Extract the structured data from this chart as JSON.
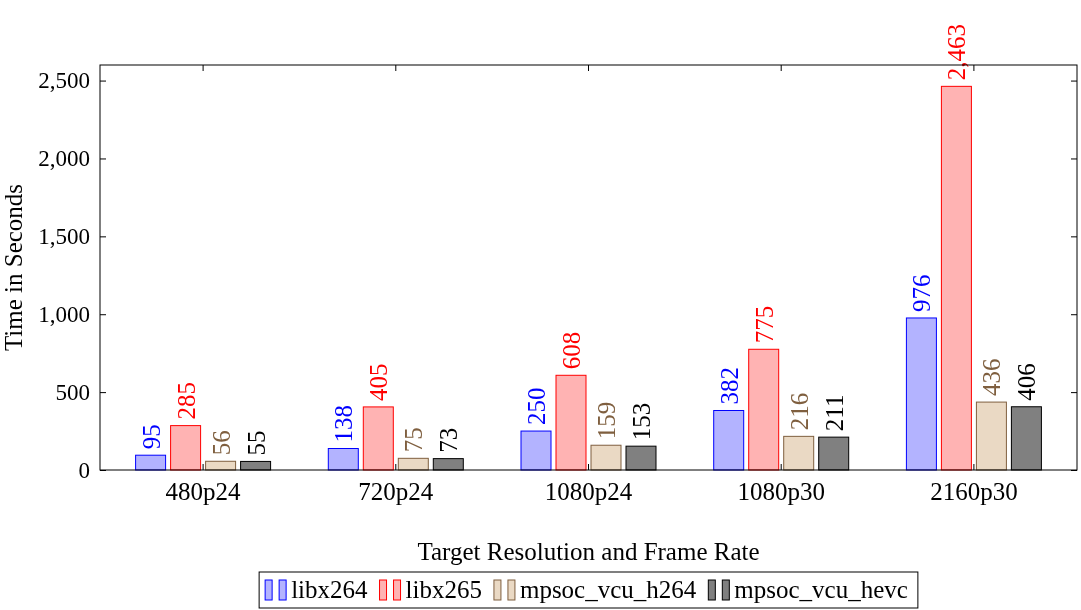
{
  "chart_data": {
    "type": "bar",
    "xlabel": "Target Resolution and Frame Rate",
    "ylabel": "Time in Seconds",
    "categories": [
      "480p24",
      "720p24",
      "1080p24",
      "1080p30",
      "2160p30"
    ],
    "series": [
      {
        "name": "libx264",
        "color": "#b3b3ff",
        "values": [
          95,
          138,
          250,
          382,
          976
        ],
        "value_labels": [
          "95",
          "138",
          "250",
          "382",
          "976"
        ]
      },
      {
        "name": "libx265",
        "color": "#ffb3b3",
        "values": [
          285,
          405,
          608,
          775,
          2463
        ],
        "value_labels": [
          "285",
          "405",
          "608",
          "775",
          "2,463"
        ]
      },
      {
        "name": "mpsoc_vcu_h264",
        "color": "#ead9c4",
        "values": [
          56,
          75,
          159,
          216,
          436
        ],
        "value_labels": [
          "56",
          "75",
          "159",
          "216",
          "436"
        ]
      },
      {
        "name": "mpsoc_vcu_hevc",
        "color": "#808080",
        "values": [
          55,
          73,
          153,
          211,
          406
        ],
        "value_labels": [
          "55",
          "73",
          "153",
          "211",
          "406"
        ]
      }
    ],
    "ylim": [
      0,
      2600
    ],
    "yticks": [
      {
        "value": 0,
        "label": "0"
      },
      {
        "value": 500,
        "label": "500"
      },
      {
        "value": 1000,
        "label": "1,000"
      },
      {
        "value": 1500,
        "label": "1,500"
      },
      {
        "value": 2000,
        "label": "2,000"
      },
      {
        "value": 2500,
        "label": "2,500"
      }
    ],
    "legend": "bottom",
    "grid": false
  }
}
